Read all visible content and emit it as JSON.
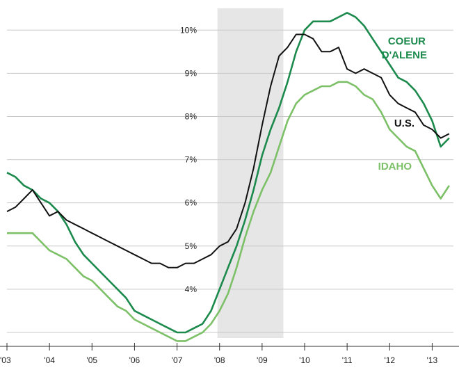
{
  "chart_data": {
    "type": "line",
    "title": "",
    "xlabel": "",
    "ylabel": "",
    "x_ticks": [
      "'03",
      "'04",
      "'05",
      "'06",
      "'07",
      "'08",
      "'09",
      "'10",
      "'11",
      "'12",
      "'13"
    ],
    "x_range": [
      2003.0,
      2013.5
    ],
    "y_ticks": [
      "4%",
      "5%",
      "6%",
      "7%",
      "8%",
      "9%",
      "10%"
    ],
    "y_range": [
      3.0,
      10.6
    ],
    "grid": "horizontal",
    "recession_band": [
      2007.95,
      2009.5
    ],
    "colors": {
      "coeur": "#1b8a4c",
      "us": "#111111",
      "idaho": "#7cc067",
      "band": "#e6e6e6",
      "grid": "#c8c8c8"
    },
    "series": [
      {
        "key": "coeur",
        "name": "COEUR",
        "name_line2": "D'ALENE",
        "x": [
          2003.0,
          2003.2,
          2003.4,
          2003.6,
          2003.8,
          2004.0,
          2004.2,
          2004.4,
          2004.6,
          2004.8,
          2005.0,
          2005.2,
          2005.4,
          2005.6,
          2005.8,
          2006.0,
          2006.2,
          2006.4,
          2006.6,
          2006.8,
          2007.0,
          2007.2,
          2007.4,
          2007.6,
          2007.8,
          2008.0,
          2008.2,
          2008.4,
          2008.6,
          2008.8,
          2009.0,
          2009.2,
          2009.4,
          2009.6,
          2009.8,
          2010.0,
          2010.2,
          2010.4,
          2010.6,
          2010.8,
          2011.0,
          2011.2,
          2011.4,
          2011.6,
          2011.8,
          2012.0,
          2012.2,
          2012.4,
          2012.6,
          2012.8,
          2013.0,
          2013.2,
          2013.4
        ],
        "values": [
          6.7,
          6.6,
          6.4,
          6.3,
          6.1,
          6.0,
          5.8,
          5.5,
          5.1,
          4.8,
          4.6,
          4.4,
          4.2,
          4.0,
          3.8,
          3.5,
          3.4,
          3.3,
          3.2,
          3.1,
          3.0,
          3.0,
          3.1,
          3.2,
          3.5,
          4.0,
          4.5,
          5.0,
          5.6,
          6.3,
          7.1,
          7.7,
          8.2,
          8.8,
          9.5,
          10.0,
          10.2,
          10.2,
          10.2,
          10.3,
          10.4,
          10.3,
          10.1,
          9.8,
          9.5,
          9.2,
          8.9,
          8.8,
          8.6,
          8.3,
          7.9,
          7.3,
          7.5
        ]
      },
      {
        "key": "us",
        "name": "U.S.",
        "x": [
          2003.0,
          2003.2,
          2003.4,
          2003.6,
          2003.8,
          2004.0,
          2004.2,
          2004.4,
          2004.6,
          2004.8,
          2005.0,
          2005.2,
          2005.4,
          2005.6,
          2005.8,
          2006.0,
          2006.2,
          2006.4,
          2006.6,
          2006.8,
          2007.0,
          2007.2,
          2007.4,
          2007.6,
          2007.8,
          2008.0,
          2008.2,
          2008.4,
          2008.6,
          2008.8,
          2009.0,
          2009.2,
          2009.4,
          2009.6,
          2009.8,
          2010.0,
          2010.2,
          2010.4,
          2010.6,
          2010.8,
          2011.0,
          2011.2,
          2011.4,
          2011.6,
          2011.8,
          2012.0,
          2012.2,
          2012.4,
          2012.6,
          2012.8,
          2013.0,
          2013.2,
          2013.4
        ],
        "values": [
          5.8,
          5.9,
          6.1,
          6.3,
          6.0,
          5.7,
          5.8,
          5.6,
          5.5,
          5.4,
          5.3,
          5.2,
          5.1,
          5.0,
          4.9,
          4.8,
          4.7,
          4.6,
          4.6,
          4.5,
          4.5,
          4.6,
          4.6,
          4.7,
          4.8,
          5.0,
          5.1,
          5.4,
          6.0,
          6.8,
          7.8,
          8.7,
          9.4,
          9.6,
          9.9,
          9.9,
          9.8,
          9.5,
          9.5,
          9.6,
          9.1,
          9.0,
          9.1,
          9.0,
          8.9,
          8.5,
          8.3,
          8.2,
          8.1,
          7.8,
          7.7,
          7.5,
          7.6
        ]
      },
      {
        "key": "idaho",
        "name": "IDAHO",
        "x": [
          2003.0,
          2003.2,
          2003.4,
          2003.6,
          2003.8,
          2004.0,
          2004.2,
          2004.4,
          2004.6,
          2004.8,
          2005.0,
          2005.2,
          2005.4,
          2005.6,
          2005.8,
          2006.0,
          2006.2,
          2006.4,
          2006.6,
          2006.8,
          2007.0,
          2007.2,
          2007.4,
          2007.6,
          2007.8,
          2008.0,
          2008.2,
          2008.4,
          2008.6,
          2008.8,
          2009.0,
          2009.2,
          2009.4,
          2009.6,
          2009.8,
          2010.0,
          2010.2,
          2010.4,
          2010.6,
          2010.8,
          2011.0,
          2011.2,
          2011.4,
          2011.6,
          2011.8,
          2012.0,
          2012.2,
          2012.4,
          2012.6,
          2012.8,
          2013.0,
          2013.2,
          2013.4
        ],
        "values": [
          5.3,
          5.3,
          5.3,
          5.3,
          5.1,
          4.9,
          4.8,
          4.7,
          4.5,
          4.3,
          4.2,
          4.0,
          3.8,
          3.6,
          3.5,
          3.3,
          3.2,
          3.1,
          3.0,
          2.9,
          2.8,
          2.8,
          2.9,
          3.0,
          3.2,
          3.5,
          3.9,
          4.5,
          5.2,
          5.8,
          6.3,
          6.7,
          7.3,
          7.9,
          8.3,
          8.5,
          8.6,
          8.7,
          8.7,
          8.8,
          8.8,
          8.7,
          8.5,
          8.4,
          8.1,
          7.7,
          7.5,
          7.3,
          7.2,
          6.8,
          6.4,
          6.1,
          6.4
        ]
      }
    ]
  }
}
